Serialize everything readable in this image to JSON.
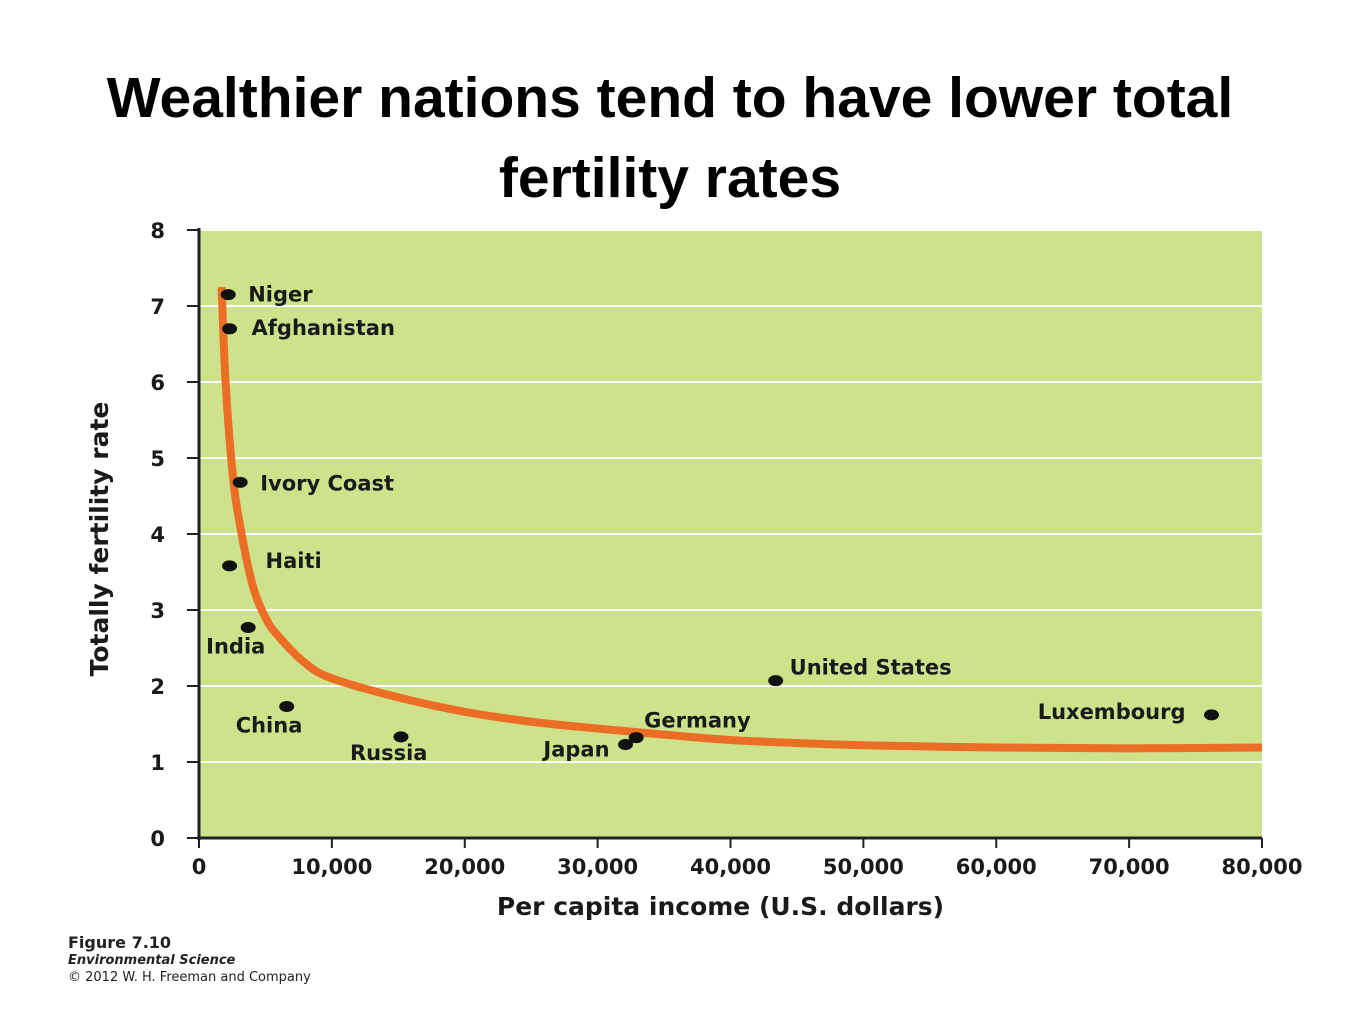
{
  "slide": {
    "title": "Wealthier nations tend to have lower total fertility rates"
  },
  "caption": {
    "figure": "Figure 7.10",
    "book": "Environmental Science",
    "copyright": "© 2012 W. H. Freeman and Company"
  },
  "colors": {
    "plot_background": "#cde28a",
    "gridline": "#ffffff",
    "curve": "#ec6d25",
    "point": "#111111",
    "axis": "#222222"
  },
  "chart_data": {
    "type": "scatter",
    "title": "",
    "xlabel": "Per capita income (U.S. dollars)",
    "ylabel": "Totally fertility rate",
    "xlim": [
      0,
      80000
    ],
    "ylim": [
      0,
      8
    ],
    "xticks": [
      0,
      10000,
      20000,
      30000,
      40000,
      50000,
      60000,
      70000,
      80000
    ],
    "xtick_labels": [
      "0",
      "10,000",
      "20,000",
      "30,000",
      "40,000",
      "50,000",
      "60,000",
      "70,000",
      "80,000"
    ],
    "yticks": [
      0,
      1,
      2,
      3,
      4,
      5,
      6,
      7,
      8
    ],
    "ytick_labels": [
      "0",
      "1",
      "2",
      "3",
      "4",
      "5",
      "6",
      "7",
      "8"
    ],
    "grid": "horizontal",
    "points": [
      {
        "label": "Niger",
        "x": 2200,
        "y": 7.15
      },
      {
        "label": "Afghanistan",
        "x": 2300,
        "y": 6.7
      },
      {
        "label": "Ivory Coast",
        "x": 3100,
        "y": 4.68
      },
      {
        "label": "Haiti",
        "x": 2300,
        "y": 3.58
      },
      {
        "label": "India",
        "x": 3700,
        "y": 2.77
      },
      {
        "label": "China",
        "x": 6600,
        "y": 1.73
      },
      {
        "label": "Russia",
        "x": 15200,
        "y": 1.33
      },
      {
        "label": "Japan",
        "x": 32100,
        "y": 1.23
      },
      {
        "label": "Germany",
        "x": 32900,
        "y": 1.32
      },
      {
        "label": "United States",
        "x": 43400,
        "y": 2.07
      },
      {
        "label": "Luxembourg",
        "x": 76200,
        "y": 1.62
      }
    ],
    "trend_curve": [
      [
        1700,
        7.25
      ],
      [
        2000,
        6.0
      ],
      [
        2500,
        4.85
      ],
      [
        3000,
        4.2
      ],
      [
        4000,
        3.35
      ],
      [
        5000,
        2.9
      ],
      [
        6000,
        2.65
      ],
      [
        8000,
        2.3
      ],
      [
        10000,
        2.1
      ],
      [
        15000,
        1.85
      ],
      [
        20000,
        1.66
      ],
      [
        25000,
        1.53
      ],
      [
        30000,
        1.44
      ],
      [
        35000,
        1.36
      ],
      [
        40000,
        1.29
      ],
      [
        45000,
        1.25
      ],
      [
        50000,
        1.22
      ],
      [
        60000,
        1.19
      ],
      [
        70000,
        1.18
      ],
      [
        80000,
        1.19
      ]
    ]
  }
}
